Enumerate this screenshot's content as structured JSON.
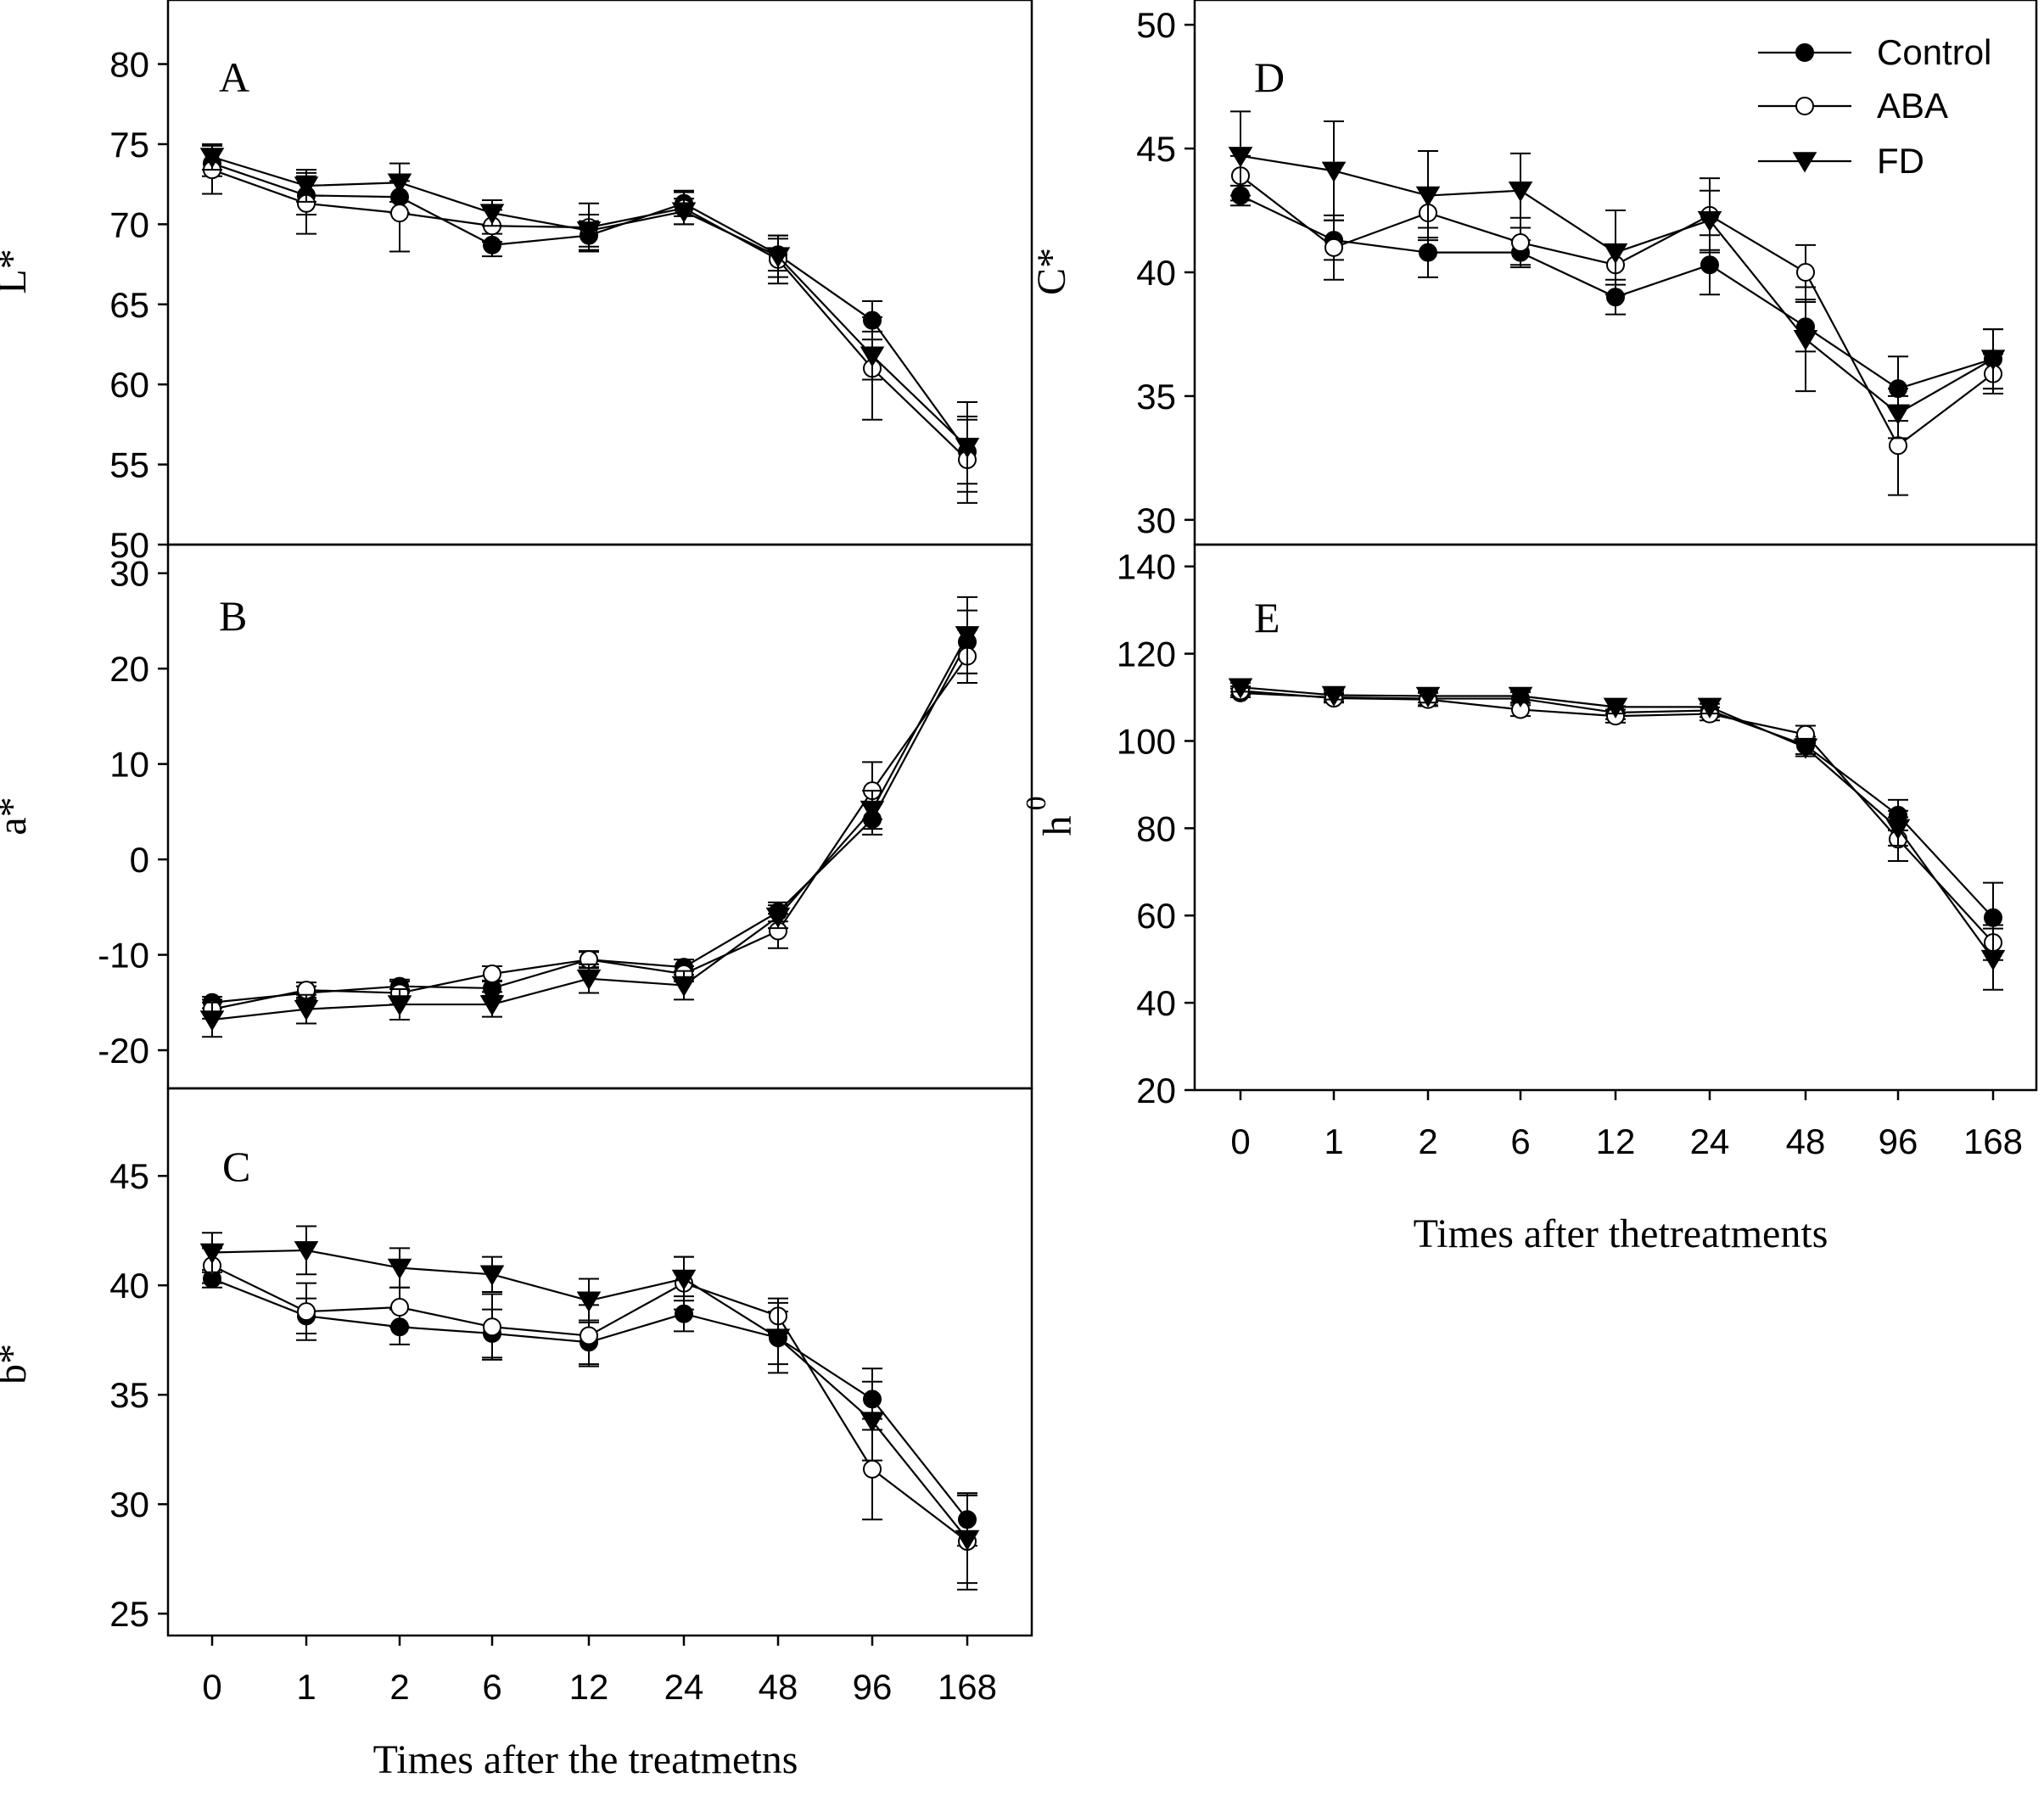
{
  "chart_data": [
    {
      "panel": "A",
      "type": "line",
      "ylabel": "L*",
      "xlabel": "",
      "categories": [
        "0",
        "1",
        "2",
        "6",
        "12",
        "24",
        "48",
        "96",
        "168"
      ],
      "ylim": [
        50,
        84
      ],
      "yticks": [
        "50",
        "55",
        "60",
        "65",
        "70",
        "75",
        "80"
      ],
      "series": [
        {
          "name": "Control",
          "marker": "filled-circle",
          "values": [
            73.8,
            71.8,
            71.7,
            68.7,
            69.3,
            71.3,
            68.1,
            64.0,
            55.8
          ],
          "errors": [
            0.8,
            1.2,
            1.0,
            0.7,
            0.9,
            0.8,
            1.0,
            1.2,
            2.0
          ]
        },
        {
          "name": "ABA",
          "marker": "open-circle",
          "values": [
            73.4,
            71.3,
            70.7,
            69.9,
            69.8,
            71.0,
            67.8,
            61.0,
            55.3
          ],
          "errors": [
            1.5,
            1.9,
            2.4,
            1.0,
            1.5,
            1.0,
            1.5,
            3.2,
            2.7
          ]
        },
        {
          "name": "FD",
          "marker": "filled-triangle-down",
          "values": [
            74.2,
            72.4,
            72.6,
            70.7,
            69.6,
            70.8,
            68.0,
            61.8,
            56.1
          ],
          "errors": [
            0.8,
            1.0,
            1.2,
            0.8,
            1.0,
            0.8,
            1.3,
            1.5,
            2.8
          ]
        }
      ]
    },
    {
      "panel": "B",
      "type": "line",
      "ylabel": "a*",
      "xlabel": "",
      "categories": [
        "0",
        "1",
        "2",
        "6",
        "12",
        "24",
        "48",
        "96",
        "168"
      ],
      "ylim": [
        -24,
        33
      ],
      "yticks": [
        "-20",
        "-10",
        "0",
        "10",
        "20",
        "30"
      ],
      "series": [
        {
          "name": "Control",
          "marker": "filled-circle",
          "values": [
            -15.0,
            -14.0,
            -13.3,
            -13.5,
            -10.5,
            -11.3,
            -5.5,
            4.2,
            22.8
          ],
          "errors": [
            0.6,
            0.7,
            0.7,
            0.8,
            0.8,
            0.8,
            1.0,
            1.6,
            3.3
          ]
        },
        {
          "name": "ABA",
          "marker": "open-circle",
          "values": [
            -15.7,
            -13.7,
            -14.0,
            -12.0,
            -10.5,
            -12.0,
            -7.5,
            7.2,
            21.3
          ],
          "errors": [
            1.0,
            0.8,
            1.2,
            0.8,
            0.9,
            0.8,
            1.8,
            3.0,
            2.8
          ]
        },
        {
          "name": "FD",
          "marker": "filled-triangle-down",
          "values": [
            -16.8,
            -15.7,
            -15.2,
            -15.2,
            -12.5,
            -13.2,
            -6.0,
            5.2,
            23.5
          ],
          "errors": [
            1.8,
            1.5,
            1.6,
            1.3,
            1.5,
            1.5,
            1.2,
            2.0,
            4.0
          ]
        }
      ]
    },
    {
      "panel": "C",
      "type": "line",
      "ylabel": "b*",
      "xlabel": "Times after the treatmetns",
      "categories": [
        "0",
        "1",
        "2",
        "6",
        "12",
        "24",
        "48",
        "96",
        "168"
      ],
      "ylim": [
        24,
        49
      ],
      "yticks": [
        "25",
        "30",
        "35",
        "40",
        "45"
      ],
      "series": [
        {
          "name": "Control",
          "marker": "filled-circle",
          "values": [
            40.3,
            38.6,
            38.1,
            37.8,
            37.4,
            38.7,
            37.6,
            34.8,
            29.3
          ],
          "errors": [
            0.4,
            0.8,
            0.8,
            1.1,
            1.0,
            0.8,
            1.2,
            1.4,
            1.2
          ]
        },
        {
          "name": "ABA",
          "marker": "open-circle",
          "values": [
            40.9,
            38.8,
            39.0,
            38.1,
            37.7,
            40.1,
            38.6,
            31.6,
            28.3
          ],
          "errors": [
            0.8,
            1.3,
            0.9,
            1.5,
            1.4,
            1.2,
            0.8,
            2.3,
            2.2
          ]
        },
        {
          "name": "FD",
          "marker": "filled-triangle-down",
          "values": [
            41.5,
            41.6,
            40.8,
            40.5,
            39.3,
            40.3,
            37.6,
            33.8,
            28.4
          ],
          "errors": [
            0.9,
            1.1,
            0.9,
            0.8,
            1.0,
            1.0,
            1.6,
            1.8,
            2.0
          ]
        }
      ]
    },
    {
      "panel": "D",
      "type": "line",
      "ylabel": "C*",
      "xlabel": "",
      "categories": [
        "0",
        "1",
        "2",
        "6",
        "12",
        "24",
        "48",
        "96",
        "168"
      ],
      "ylim": [
        29,
        51
      ],
      "yticks": [
        "30",
        "35",
        "40",
        "45",
        "50"
      ],
      "series": [
        {
          "name": "Control",
          "marker": "filled-circle",
          "values": [
            43.1,
            41.3,
            40.8,
            40.8,
            39.0,
            40.3,
            37.8,
            35.3,
            36.5
          ],
          "errors": [
            0.4,
            0.8,
            1.0,
            0.5,
            0.7,
            1.2,
            1.0,
            1.3,
            1.2
          ]
        },
        {
          "name": "ABA",
          "marker": "open-circle",
          "values": [
            43.9,
            41.0,
            42.4,
            41.2,
            40.3,
            42.3,
            40.0,
            33.0,
            35.9
          ],
          "errors": [
            0.8,
            1.3,
            1.0,
            1.0,
            0.8,
            1.5,
            1.1,
            2.0,
            0.8
          ]
        },
        {
          "name": "FD",
          "marker": "filled-triangle-down",
          "values": [
            44.7,
            44.1,
            43.1,
            43.3,
            40.8,
            42.1,
            37.3,
            34.3,
            36.5
          ],
          "errors": [
            1.8,
            2.0,
            1.8,
            1.5,
            1.7,
            1.2,
            2.1,
            1.0,
            1.2
          ]
        }
      ]
    },
    {
      "panel": "E",
      "type": "line",
      "ylabel": "h",
      "ylabel_superscript": "0",
      "xlabel": "Times after thetreatments",
      "categories": [
        "0",
        "1",
        "2",
        "6",
        "12",
        "24",
        "48",
        "96",
        "168"
      ],
      "ylim": [
        20,
        145
      ],
      "yticks": [
        "20",
        "40",
        "60",
        "80",
        "100",
        "120",
        "140"
      ],
      "series": [
        {
          "name": "Control",
          "marker": "filled-circle",
          "values": [
            111.0,
            110.0,
            109.7,
            109.7,
            106.5,
            107.0,
            99.0,
            83.0,
            59.5
          ],
          "errors": [
            1.0,
            1.0,
            1.5,
            1.5,
            1.5,
            1.5,
            2.0,
            3.5,
            8.0
          ]
        },
        {
          "name": "ABA",
          "marker": "open-circle",
          "values": [
            111.5,
            109.8,
            109.5,
            107.2,
            105.7,
            106.2,
            101.5,
            77.5,
            53.8
          ],
          "errors": [
            1.0,
            1.0,
            1.5,
            1.5,
            1.5,
            1.5,
            2.0,
            5.0,
            4.0
          ]
        },
        {
          "name": "FD",
          "marker": "filled-triangle-down",
          "values": [
            112.3,
            110.5,
            110.3,
            110.3,
            107.8,
            107.8,
            98.5,
            80.0,
            50.0
          ],
          "errors": [
            1.0,
            1.0,
            1.5,
            1.5,
            1.5,
            1.5,
            2.0,
            4.0,
            7.0
          ]
        }
      ]
    }
  ],
  "legend": {
    "position": "top-right",
    "entries": [
      "Control",
      "ABA",
      "FD"
    ]
  }
}
